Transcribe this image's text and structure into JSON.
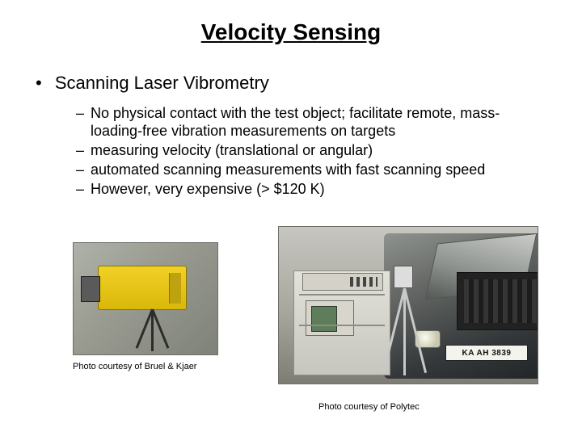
{
  "title": "Velocity Sensing",
  "main_bullet": "Scanning Laser Vibrometry",
  "sub_bullets": [
    "No physical contact with the test object; facilitate remote, mass-loading-free vibration measurements on targets",
    "measuring velocity (translational or angular)",
    "automated scanning measurements with fast scanning speed",
    "However, very expensive (> $120 K)"
  ],
  "image1": {
    "caption": "Photo courtesy of Bruel & Kjaer",
    "description": "yellow laser vibrometer on tripod"
  },
  "image2": {
    "caption": "Photo courtesy of Polytec",
    "description": "measurement cart and tripod in front of car with open hood",
    "license_plate": "KA AH 3839"
  },
  "colors": {
    "background": "#ffffff",
    "text": "#000000",
    "camera_body": "#f2d026"
  }
}
